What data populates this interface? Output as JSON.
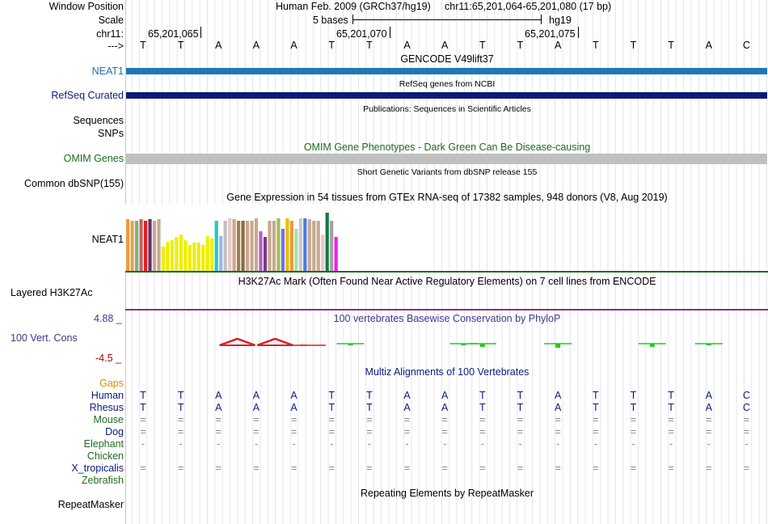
{
  "header": {
    "window_position_label": "Window Position",
    "assembly": "Human Feb. 2009 (GRCh37/hg19)",
    "position": "chr11:65,201,064-65,201,080 (17 bp)",
    "scale_label": "Scale",
    "scale_text": "5 bases",
    "scale_db": "hg19",
    "chrom_label": "chr11:",
    "ticks": [
      "65,201,065",
      "65,201,070",
      "65,201,075"
    ],
    "strand_label": "--->"
  },
  "sequence": [
    "T",
    "T",
    "A",
    "A",
    "A",
    "T",
    "T",
    "A",
    "A",
    "T",
    "T",
    "A",
    "T",
    "T",
    "T",
    "A",
    "C"
  ],
  "tracks": {
    "gencode": {
      "title": "GENCODE V49lift37",
      "label": "NEAT1",
      "color": "#1f77b4"
    },
    "refseq": {
      "title": "RefSeq genes from NCBI",
      "label": "RefSeq Curated",
      "color": "#0b1a7a"
    },
    "publications": {
      "title": "Publications: Sequences in Scientific Articles",
      "labels": [
        "Sequences",
        "SNPs"
      ]
    },
    "omim": {
      "title": "OMIM Gene Phenotypes - Dark Green Can Be Disease-causing",
      "label": "OMIM Genes",
      "color": "#c0c0c0"
    },
    "dbsnp": {
      "title": "Short Genetic Variants from dbSNP release 155",
      "label": "Common dbSNP(155)"
    },
    "gtex": {
      "title": "Gene Expression in 54 tissues from GTEx RNA-seq of 17382 samples, 948 donors (V8, Aug 2019)",
      "label": "NEAT1"
    },
    "h3k27ac": {
      "title": "H3K27Ac Mark (Often Found Near Active Regulatory Elements) on 7 cell lines from ENCODE",
      "label": "Layered H3K27Ac"
    },
    "phylop": {
      "title": "100 vertebrates Basewise Conservation by PhyloP",
      "label": "100 Vert. Cons",
      "max": "4.88 _",
      "min": "-4.5 _"
    },
    "multiz": {
      "title": "Multiz Alignments of 100 Vertebrates",
      "gaps_label": "Gaps"
    },
    "repeatmasker": {
      "title": "Repeating Elements by RepeatMasker",
      "label": "RepeatMasker"
    }
  },
  "alignment": [
    {
      "species": "Human",
      "row": [
        "T",
        "T",
        "A",
        "A",
        "A",
        "T",
        "T",
        "A",
        "A",
        "T",
        "T",
        "A",
        "T",
        "T",
        "T",
        "A",
        "C"
      ]
    },
    {
      "species": "Rhesus",
      "row": [
        "T",
        "T",
        "A",
        "A",
        "A",
        "T",
        "T",
        "A",
        "A",
        "T",
        "T",
        "A",
        "T",
        "T",
        "T",
        "A",
        "C"
      ]
    },
    {
      "species": "Mouse",
      "row": [
        "=",
        "=",
        "=",
        "=",
        "=",
        "=",
        "=",
        "=",
        "=",
        "=",
        "=",
        "=",
        "=",
        "=",
        "=",
        "=",
        "="
      ]
    },
    {
      "species": "Dog",
      "row": [
        "=",
        "=",
        "=",
        "=",
        "=",
        "=",
        "=",
        "=",
        "=",
        "=",
        "=",
        "=",
        "=",
        "=",
        "=",
        "=",
        "="
      ]
    },
    {
      "species": "Elephant",
      "row": [
        "-",
        "-",
        "-",
        "-",
        "-",
        "-",
        "-",
        "-",
        "-",
        "-",
        "-",
        "-",
        "-",
        "-",
        "-",
        "-",
        "-"
      ]
    },
    {
      "species": "Chicken",
      "row": []
    },
    {
      "species": "X_tropicalis",
      "row": [
        "=",
        "=",
        "=",
        "=",
        "=",
        "=",
        "=",
        "=",
        "=",
        "=",
        "=",
        "=",
        "=",
        "=",
        "=",
        "=",
        "="
      ]
    },
    {
      "species": "Zebrafish",
      "row": []
    }
  ],
  "colors": {
    "gencode_label": "#1f6fa8",
    "refseq_label": "#0b1a7a",
    "omim_label": "#1f6b1f",
    "phylop_label": "#3a3a8a",
    "gaps_label": "#e08a00",
    "h3k27ac_line": "#7a3a7a"
  },
  "gtex_bars": [
    {
      "v": 0.88,
      "c": "#ee9a3a"
    },
    {
      "v": 0.86,
      "c": "#e5a04c"
    },
    {
      "v": 0.86,
      "c": "#7fb07f"
    },
    {
      "v": 0.88,
      "c": "#c46060"
    },
    {
      "v": 0.86,
      "c": "#e02020"
    },
    {
      "v": 0.88,
      "c": "#6a2a6a"
    },
    {
      "v": 0.86,
      "c": "#c8a890"
    },
    {
      "v": 0.88,
      "c": "#c8a890"
    },
    {
      "v": 0.42,
      "c": "#eeee00"
    },
    {
      "v": 0.5,
      "c": "#eeee00"
    },
    {
      "v": 0.52,
      "c": "#eeee00"
    },
    {
      "v": 0.58,
      "c": "#eeee00"
    },
    {
      "v": 0.62,
      "c": "#eeee00"
    },
    {
      "v": 0.52,
      "c": "#eeee00"
    },
    {
      "v": 0.45,
      "c": "#eeee00"
    },
    {
      "v": 0.48,
      "c": "#eeee00"
    },
    {
      "v": 0.48,
      "c": "#eeee00"
    },
    {
      "v": 0.45,
      "c": "#eeee00"
    },
    {
      "v": 0.6,
      "c": "#eeee00"
    },
    {
      "v": 0.55,
      "c": "#eeee00"
    },
    {
      "v": 0.86,
      "c": "#1fc8c8"
    },
    {
      "v": 0.6,
      "c": "#99b8dd"
    },
    {
      "v": 0.86,
      "c": "#c0c0c0"
    },
    {
      "v": 0.9,
      "c": "#e8c8c8"
    },
    {
      "v": 0.88,
      "c": "#c8a890"
    },
    {
      "v": 0.86,
      "c": "#a87850"
    },
    {
      "v": 0.86,
      "c": "#8a6a40"
    },
    {
      "v": 0.86,
      "c": "#c8a890"
    },
    {
      "v": 0.86,
      "c": "#c8a890"
    },
    {
      "v": 0.9,
      "c": "#c8a890"
    },
    {
      "v": 0.68,
      "c": "#b060c0"
    },
    {
      "v": 0.58,
      "c": "#7a3a8a"
    },
    {
      "v": 0.86,
      "c": "#c8a890"
    },
    {
      "v": 0.86,
      "c": "#c8a890"
    },
    {
      "v": 0.9,
      "c": "#a0c050"
    },
    {
      "v": 0.72,
      "c": "#7070ee"
    },
    {
      "v": 0.9,
      "c": "#eebb00"
    },
    {
      "v": 0.86,
      "c": "#ee9a3a"
    },
    {
      "v": 0.72,
      "c": "#a8e0a8"
    },
    {
      "v": 0.9,
      "c": "#c8c8c8"
    },
    {
      "v": 0.9,
      "c": "#4a7ae0"
    },
    {
      "v": 0.88,
      "c": "#c8a890"
    },
    {
      "v": 0.86,
      "c": "#c8a890"
    },
    {
      "v": 0.86,
      "c": "#c8a890"
    },
    {
      "v": 0.62,
      "c": "#e8c8c8"
    },
    {
      "v": 1.0,
      "c": "#107a40"
    },
    {
      "v": 0.86,
      "c": "#a0a0a0"
    },
    {
      "v": 0.58,
      "c": "#ee20ee"
    }
  ],
  "phylop_values": [
    {
      "x": 4.0,
      "v": -0.3
    },
    {
      "x": 4.5,
      "v": -0.3
    },
    {
      "x": 5.5,
      "v": 0.0
    },
    {
      "x": 9.0,
      "v": 0.25
    },
    {
      "x": 11.0,
      "v": 0.3
    },
    {
      "x": 13.5,
      "v": 0.25
    },
    {
      "x": 15.0,
      "v": 0.15
    },
    {
      "x": 2.5,
      "v": -0.9
    },
    {
      "x": 3.5,
      "v": -0.9
    },
    {
      "x": 8.5,
      "v": 0.0
    }
  ]
}
